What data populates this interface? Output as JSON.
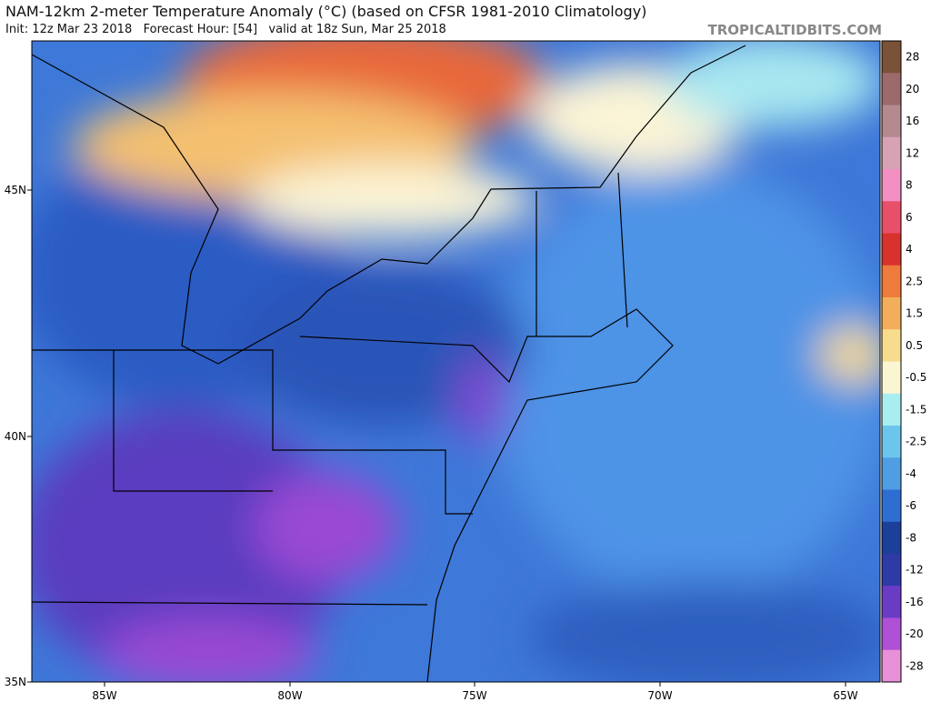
{
  "header": {
    "title": "NAM-12km 2-meter Temperature Anomaly (°C) (based on CFSR 1981-2010 Climatology)",
    "subtitle": "Init: 12z Mar 23 2018   Forecast Hour: [54]   valid at 18z Sun, Mar 25 2018",
    "site": "TROPICALTIDBITS.COM"
  },
  "map": {
    "lon_labels": [
      "85W",
      "80W",
      "75W",
      "70W",
      "65W"
    ],
    "lat_labels": [
      "45N",
      "40N",
      "35N"
    ]
  },
  "colorbar": {
    "labels": [
      "28",
      "20",
      "16",
      "12",
      "8",
      "6",
      "4",
      "2.5",
      "1.5",
      "0.5",
      "-0.5",
      "-1.5",
      "-2.5",
      "-4",
      "-6",
      "-8",
      "-12",
      "-16",
      "-20",
      "-28"
    ],
    "colors": [
      "#7a5238",
      "#9b6b6b",
      "#b58a8f",
      "#d6a2b4",
      "#f290c4",
      "#e8506a",
      "#d8322c",
      "#ee7a3c",
      "#f3ae5c",
      "#f7dc8e",
      "#fbf6d2",
      "#a8eef0",
      "#6cc6ec",
      "#4f9ee4",
      "#2e6ed2",
      "#1c3f9a",
      "#2e3aa6",
      "#6a3cc6",
      "#b050d6",
      "#e890d8"
    ]
  }
}
